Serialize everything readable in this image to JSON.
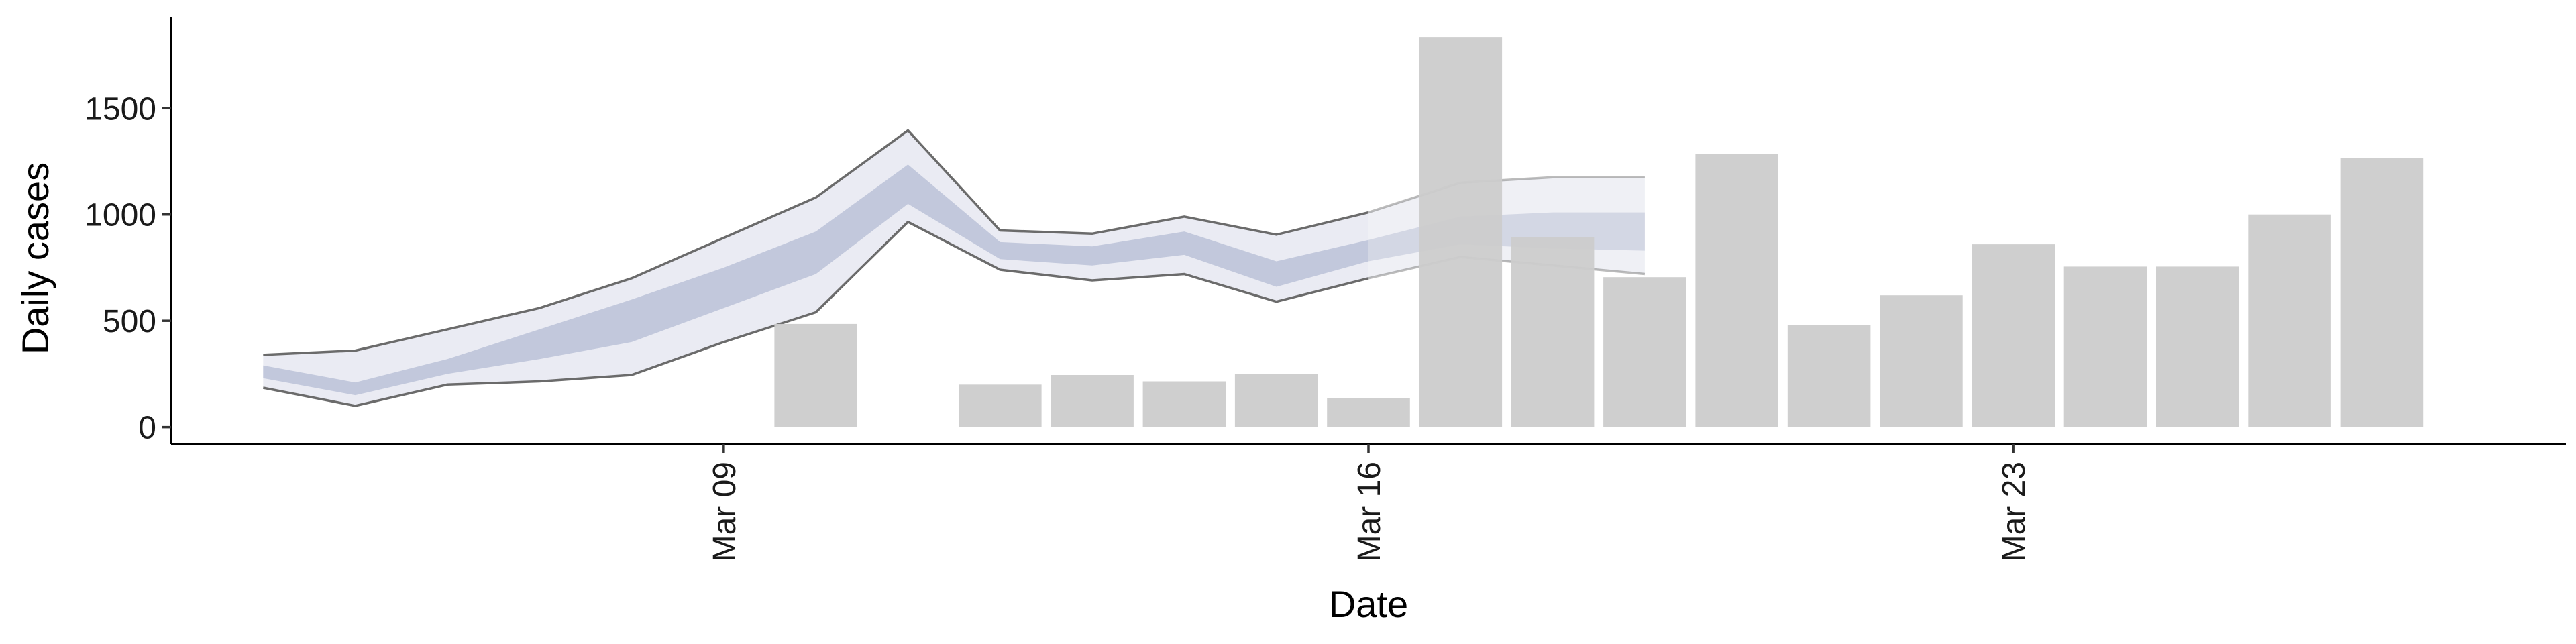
{
  "chart_data": {
    "type": "bar",
    "xlabel": "Date",
    "ylabel": "Daily cases",
    "x_ticks": [
      {
        "date": "2020-03-09",
        "label": "Mar 09"
      },
      {
        "date": "2020-03-16",
        "label": "Mar 16"
      },
      {
        "date": "2020-03-23",
        "label": "Mar 23"
      }
    ],
    "y_ticks": [
      0,
      500,
      1000,
      1500
    ],
    "xlim": [
      "2020-03-03",
      "2020-03-29"
    ],
    "ylim": [
      -80,
      1930
    ],
    "grid": false,
    "legend": "none",
    "colors": {
      "bars": "#cccccc",
      "outer_band": "#dfe1ec",
      "inner_band": "#b1b9d1",
      "band_edge": "#6b6b6b",
      "axis": "#000000"
    },
    "bars": {
      "x": [
        "2020-03-10",
        "2020-03-12",
        "2020-03-13",
        "2020-03-14",
        "2020-03-15",
        "2020-03-16",
        "2020-03-17",
        "2020-03-18",
        "2020-03-19",
        "2020-03-20",
        "2020-03-21",
        "2020-03-22",
        "2020-03-23",
        "2020-03-24",
        "2020-03-25",
        "2020-03-26",
        "2020-03-27"
      ],
      "values": [
        485,
        200,
        245,
        215,
        250,
        135,
        1835,
        895,
        705,
        1285,
        480,
        620,
        860,
        755,
        755,
        1000,
        1265
      ]
    },
    "fitted_band": {
      "x": [
        "2020-03-04",
        "2020-03-05",
        "2020-03-06",
        "2020-03-07",
        "2020-03-08",
        "2020-03-09",
        "2020-03-10",
        "2020-03-11",
        "2020-03-12",
        "2020-03-13",
        "2020-03-14",
        "2020-03-15",
        "2020-03-16"
      ],
      "outer_upper": [
        340,
        360,
        460,
        560,
        700,
        890,
        1080,
        1395,
        925,
        910,
        990,
        905,
        1010
      ],
      "outer_lower": [
        185,
        100,
        200,
        215,
        245,
        400,
        540,
        965,
        740,
        690,
        720,
        590,
        700
      ],
      "inner_upper": [
        290,
        210,
        320,
        460,
        600,
        750,
        920,
        1235,
        870,
        850,
        920,
        780,
        880
      ],
      "inner_lower": [
        230,
        150,
        250,
        320,
        400,
        560,
        720,
        1050,
        790,
        760,
        810,
        660,
        780
      ]
    },
    "forecast_band": {
      "x": [
        "2020-03-16",
        "2020-03-17",
        "2020-03-18",
        "2020-03-19"
      ],
      "outer_upper": [
        1010,
        1150,
        1175,
        1175
      ],
      "outer_lower": [
        700,
        800,
        760,
        720
      ],
      "inner_upper": [
        880,
        990,
        1010,
        1010
      ],
      "inner_lower": [
        780,
        860,
        840,
        830
      ]
    }
  }
}
